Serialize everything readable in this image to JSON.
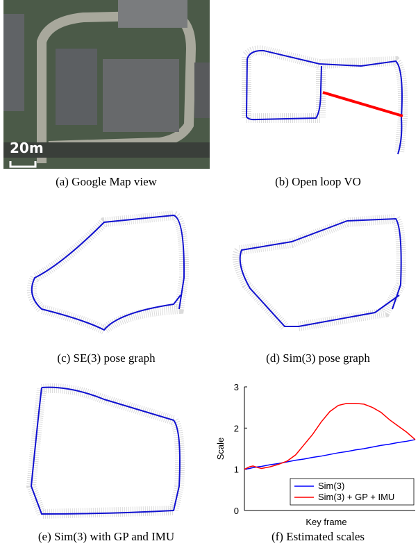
{
  "figure": {
    "map_scale": "20m",
    "captions": [
      "(a) Google Map view",
      "(b) Open loop VO",
      "(c) SE(3) pose graph",
      "(d) Sim(3) pose graph",
      "(e) Sim(3) with GP and IMU",
      "(f) Estimated scales"
    ]
  },
  "chart_data": {
    "type": "line",
    "xlabel": "Key frame",
    "ylabel": "Scale",
    "x": [
      0,
      3,
      5,
      8,
      10,
      15,
      20,
      25,
      30,
      35,
      40,
      45,
      50,
      55,
      60,
      65,
      70,
      75,
      80,
      85,
      90,
      95,
      100
    ],
    "xlim": [
      0,
      100
    ],
    "ylim": [
      0,
      3
    ],
    "yticks": [
      0,
      1,
      2,
      3
    ],
    "legend": "lower right",
    "series": [
      {
        "name": "Sim(3)",
        "color": "#0000ff",
        "values": [
          1.0,
          1.02,
          1.04,
          1.06,
          1.07,
          1.11,
          1.14,
          1.18,
          1.22,
          1.25,
          1.29,
          1.32,
          1.36,
          1.4,
          1.43,
          1.47,
          1.5,
          1.54,
          1.58,
          1.61,
          1.65,
          1.68,
          1.72
        ]
      },
      {
        "name": "Sim(3) + GP + IMU",
        "color": "#ff0000",
        "values": [
          1.0,
          1.06,
          1.08,
          1.04,
          1.02,
          1.06,
          1.12,
          1.2,
          1.35,
          1.6,
          1.85,
          2.15,
          2.4,
          2.55,
          2.6,
          2.6,
          2.58,
          2.5,
          2.38,
          2.2,
          2.05,
          1.9,
          1.72
        ]
      }
    ]
  }
}
